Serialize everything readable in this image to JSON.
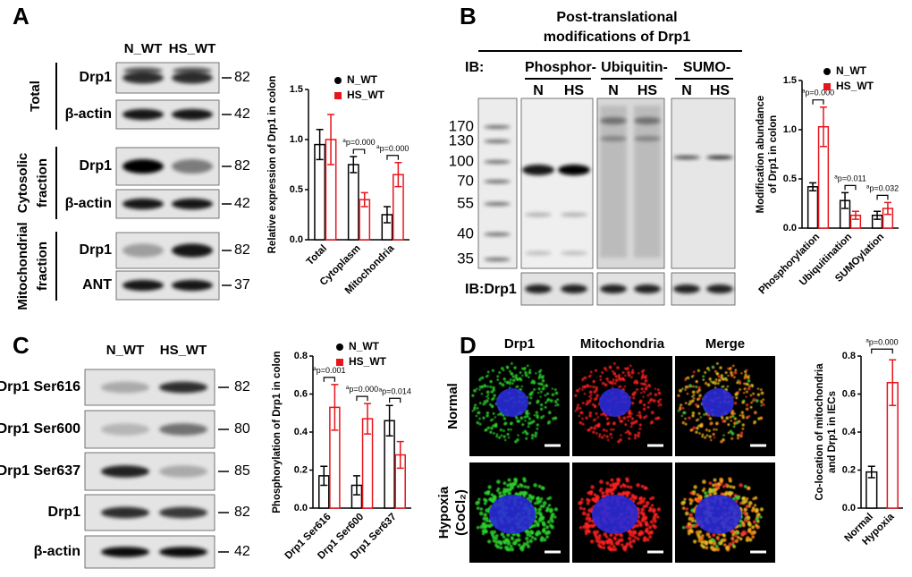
{
  "panel_labels": [
    "A",
    "B",
    "C",
    "D"
  ],
  "blot_a": {
    "columns": [
      "N_WT",
      "HS_WT"
    ],
    "groups": [
      {
        "label": [
          "Total"
        ],
        "rows": [
          {
            "name": "Drp1",
            "mw": 82
          },
          {
            "name": "β-actin",
            "mw": 42
          }
        ]
      },
      {
        "label": [
          "Cytosolic",
          "fraction"
        ],
        "rows": [
          {
            "name": "Drp1",
            "mw": 82
          },
          {
            "name": "β-actin",
            "mw": 42
          }
        ]
      },
      {
        "label": [
          "Mitochondrial",
          "fraction"
        ],
        "rows": [
          {
            "name": "Drp1",
            "mw": 82
          },
          {
            "name": "ANT",
            "mw": 37
          }
        ]
      }
    ]
  },
  "blot_b": {
    "title": [
      "Post-translational",
      "modifications of Drp1"
    ],
    "ib": "IB:",
    "groups": [
      {
        "name": "Phosphor-",
        "lanes": [
          "N",
          "HS"
        ]
      },
      {
        "name": "Ubiquitin-",
        "lanes": [
          "N",
          "HS"
        ]
      },
      {
        "name": "SUMO-",
        "lanes": [
          "N",
          "HS"
        ]
      }
    ],
    "ladder": [
      170,
      130,
      100,
      70,
      55,
      40,
      35
    ],
    "ib_bottom": "IB:Drp1"
  },
  "blot_c": {
    "columns": [
      "N_WT",
      "HS_WT"
    ],
    "rows": [
      {
        "name": "Drp1 Ser616",
        "mw": 82
      },
      {
        "name": "Drp1 Ser600",
        "mw": 80
      },
      {
        "name": "Drp1 Ser637",
        "mw": 85
      },
      {
        "name": "Drp1",
        "mw": 82
      },
      {
        "name": "β-actin",
        "mw": 42
      }
    ]
  },
  "images_d": {
    "columns": [
      "Drp1",
      "Mitochondria",
      "Merge"
    ],
    "rows": [
      [
        "Normal"
      ],
      [
        "Hypoxia",
        "(CoCl₂)"
      ]
    ]
  },
  "chart_data": [
    {
      "type": "bar",
      "ylabel": [
        "Relative expression of Drp1 in colon"
      ],
      "categories": [
        "Total",
        "Cytoplasm",
        "Mitochondria"
      ],
      "series": [
        {
          "name": "N_WT",
          "color": "#000000",
          "marker": "circle",
          "values": [
            0.95,
            0.75,
            0.25
          ],
          "errors": [
            0.15,
            0.08,
            0.08
          ]
        },
        {
          "name": "HS_WT",
          "color": "#e8151b",
          "marker": "square",
          "values": [
            1.0,
            0.4,
            0.65
          ],
          "errors": [
            0.25,
            0.07,
            0.12
          ]
        }
      ],
      "annotations": [
        null,
        {
          "superscript": "a",
          "text": "p=0.000"
        },
        {
          "superscript": "a",
          "text": "p=0.000"
        }
      ],
      "ylim": [
        0,
        1.5
      ],
      "yticks": [
        {
          "value": 0,
          "label": "0.0"
        },
        0.5,
        {
          "value": 1,
          "label": "1.0"
        },
        1.5
      ],
      "legend": "top-right"
    },
    {
      "type": "bar",
      "ylabel": [
        "Modification abundance",
        "of Drp1 in colon"
      ],
      "categories": [
        "Phosphorylation",
        "Ubiquitination",
        "SUMOylation"
      ],
      "series": [
        {
          "name": "N_WT",
          "color": "#000000",
          "marker": "circle",
          "values": [
            0.42,
            0.28,
            0.13
          ],
          "errors": [
            0.04,
            0.08,
            0.04
          ]
        },
        {
          "name": "HS_WT",
          "color": "#e8151b",
          "marker": "square",
          "values": [
            1.03,
            0.13,
            0.2
          ],
          "errors": [
            0.2,
            0.04,
            0.06
          ]
        }
      ],
      "annotations": [
        {
          "superscript": "a",
          "text": "p=0.000"
        },
        {
          "superscript": "a",
          "text": "p=0.011"
        },
        {
          "superscript": "a",
          "text": "p=0.032"
        }
      ],
      "ylim": [
        0,
        1.5
      ],
      "yticks": [
        {
          "value": 0,
          "label": "0.0"
        },
        0.5,
        {
          "value": 1,
          "label": "1.0"
        },
        1.5
      ],
      "legend": "top-right"
    },
    {
      "type": "bar",
      "ylabel": [
        "Phosphorylation of Drp1 in colon"
      ],
      "categories": [
        "Drp1 Ser616",
        "Drp1 Ser600",
        "Drp1 Ser637"
      ],
      "series": [
        {
          "name": "N_WT",
          "color": "#000000",
          "marker": "circle",
          "values": [
            0.17,
            0.12,
            0.46
          ],
          "errors": [
            0.05,
            0.05,
            0.08
          ]
        },
        {
          "name": "HS_WT",
          "color": "#e8151b",
          "marker": "square",
          "values": [
            0.53,
            0.47,
            0.28
          ],
          "errors": [
            0.12,
            0.08,
            0.07
          ]
        }
      ],
      "annotations": [
        {
          "superscript": "a",
          "text": "p=0.001"
        },
        {
          "superscript": "a",
          "text": "p=0.000"
        },
        {
          "superscript": "a",
          "text": "p=0.014"
        }
      ],
      "ylim": [
        0,
        0.8
      ],
      "yticks": [
        {
          "value": 0,
          "label": "0.0"
        },
        0.2,
        0.4,
        0.6,
        0.8
      ],
      "legend": "top-right"
    },
    {
      "type": "bar",
      "ylabel": [
        "Co-location of mitochondria",
        "and Drp1 in IECs"
      ],
      "categories": [
        "Normal",
        "Hypoxia"
      ],
      "values": [
        0.19,
        0.66
      ],
      "errors": [
        0.03,
        0.12
      ],
      "colors": [
        "#000000",
        "#e8151b"
      ],
      "annotation": {
        "superscript": "a",
        "text": "p=0.000"
      },
      "ylim": [
        0,
        0.8
      ],
      "yticks": [
        {
          "value": 0,
          "label": "0.0"
        },
        0.2,
        0.4,
        0.6,
        0.8
      ]
    }
  ]
}
